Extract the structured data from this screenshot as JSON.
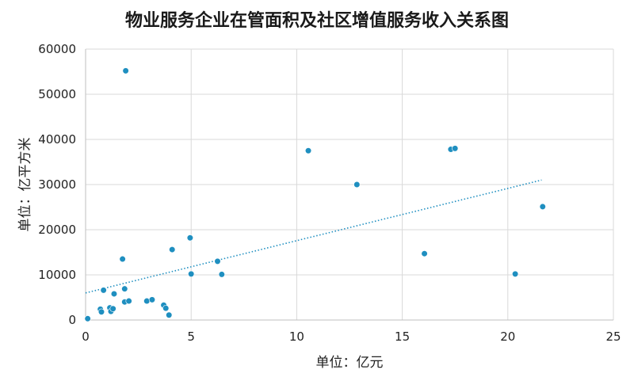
{
  "chart_data": {
    "type": "scatter",
    "title": "物业服务企业在管面积及社区增值服务收入关系图",
    "xlabel": "单位：亿元",
    "ylabel": "单位：亿平方米",
    "xlim": [
      0,
      25
    ],
    "ylim": [
      0,
      60000
    ],
    "xticks": [
      0,
      5,
      10,
      15,
      20,
      25
    ],
    "yticks": [
      0,
      10000,
      20000,
      30000,
      40000,
      50000,
      60000
    ],
    "grid": true,
    "trendline": {
      "type": "linear",
      "from": [
        0,
        6000
      ],
      "to": [
        21.6,
        31000
      ]
    },
    "points": [
      {
        "x": 0.1,
        "y": 300
      },
      {
        "x": 0.7,
        "y": 2400
      },
      {
        "x": 0.75,
        "y": 1800
      },
      {
        "x": 0.85,
        "y": 6600
      },
      {
        "x": 1.15,
        "y": 2700
      },
      {
        "x": 1.2,
        "y": 1900
      },
      {
        "x": 1.3,
        "y": 2500
      },
      {
        "x": 1.35,
        "y": 5800
      },
      {
        "x": 1.75,
        "y": 13500
      },
      {
        "x": 1.85,
        "y": 4000
      },
      {
        "x": 1.85,
        "y": 6900
      },
      {
        "x": 1.9,
        "y": 55200
      },
      {
        "x": 2.05,
        "y": 4200
      },
      {
        "x": 2.9,
        "y": 4200
      },
      {
        "x": 3.15,
        "y": 4500
      },
      {
        "x": 3.7,
        "y": 3300
      },
      {
        "x": 3.8,
        "y": 2600
      },
      {
        "x": 3.95,
        "y": 1100
      },
      {
        "x": 4.1,
        "y": 15600
      },
      {
        "x": 4.95,
        "y": 18200
      },
      {
        "x": 5.0,
        "y": 10200
      },
      {
        "x": 6.25,
        "y": 13000
      },
      {
        "x": 6.45,
        "y": 10100
      },
      {
        "x": 10.55,
        "y": 37500
      },
      {
        "x": 12.85,
        "y": 30000
      },
      {
        "x": 16.05,
        "y": 14700
      },
      {
        "x": 17.3,
        "y": 37800
      },
      {
        "x": 17.5,
        "y": 38000
      },
      {
        "x": 20.35,
        "y": 10200
      },
      {
        "x": 21.65,
        "y": 25100
      }
    ]
  }
}
